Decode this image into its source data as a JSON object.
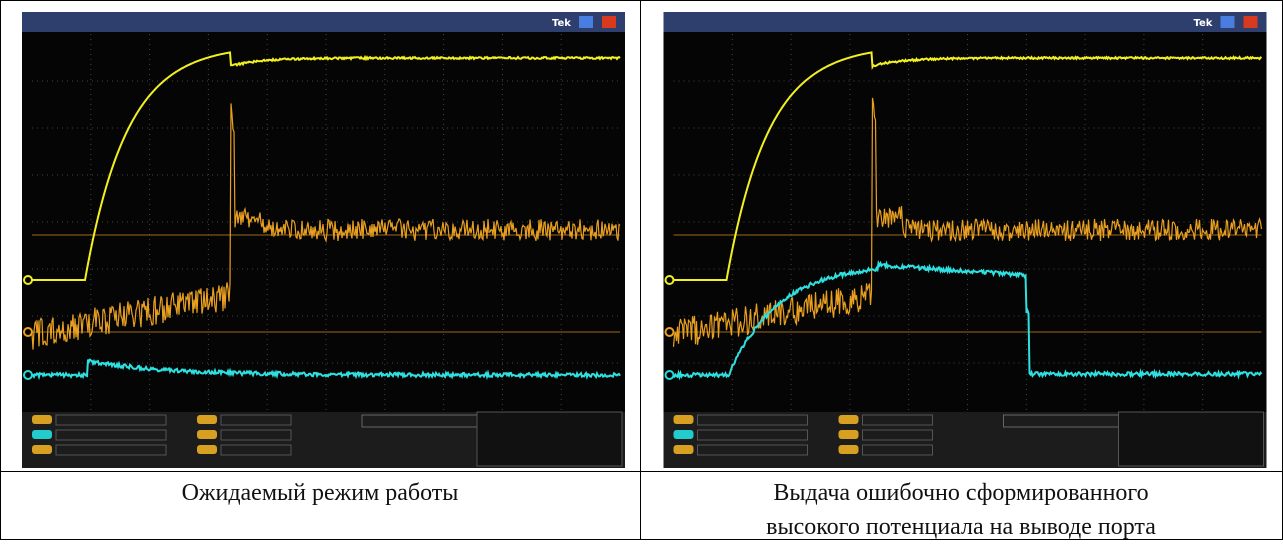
{
  "panels": [
    {
      "tek": "Tek",
      "caption": [
        "Ожидаемый режим работы"
      ]
    },
    {
      "tek": "Tek",
      "caption": [
        "Выдача ошибочно сформированного",
        "высокого потенциала на выводе порта"
      ]
    }
  ]
}
